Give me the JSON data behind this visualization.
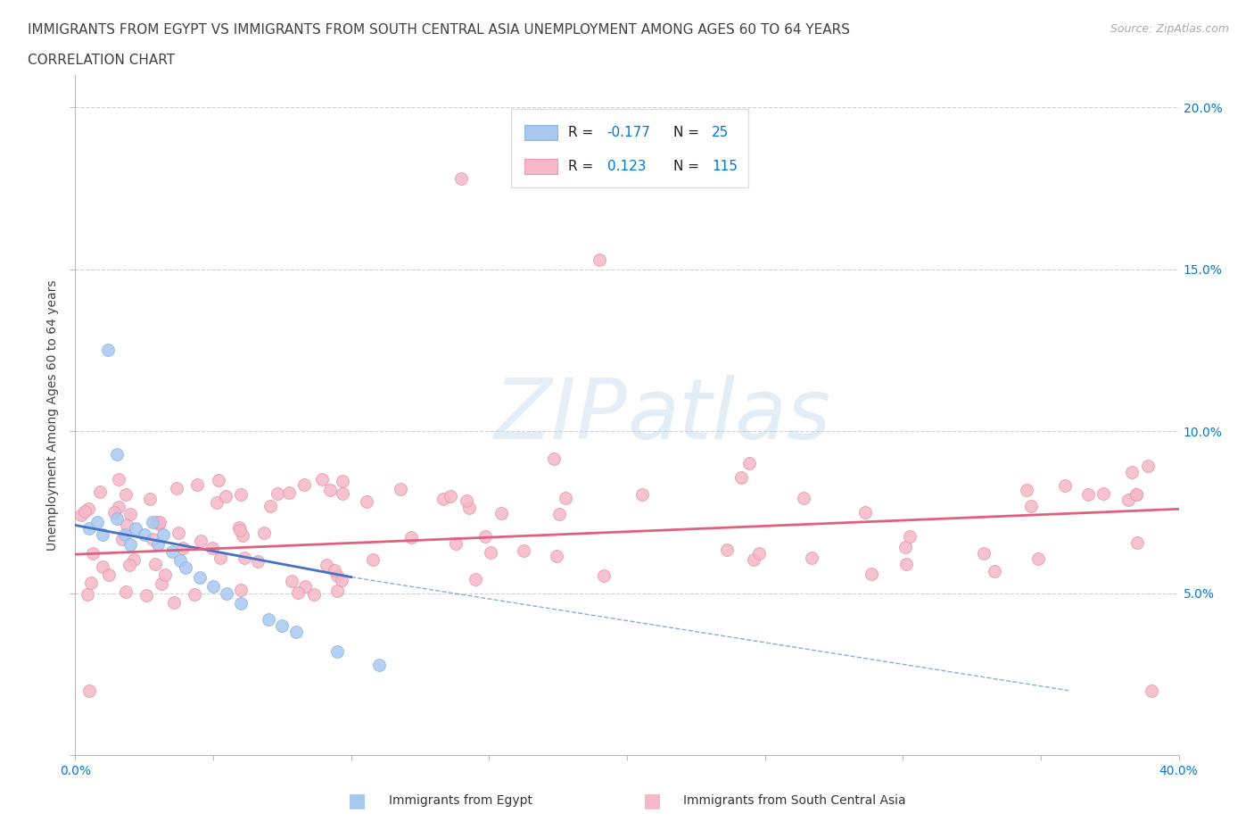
{
  "title_line1": "IMMIGRANTS FROM EGYPT VS IMMIGRANTS FROM SOUTH CENTRAL ASIA UNEMPLOYMENT AMONG AGES 60 TO 64 YEARS",
  "title_line2": "CORRELATION CHART",
  "source_text": "Source: ZipAtlas.com",
  "ylabel": "Unemployment Among Ages 60 to 64 years",
  "xlim": [
    0.0,
    0.4
  ],
  "ylim": [
    0.0,
    0.21
  ],
  "grid_color": "#cccccc",
  "background_color": "#ffffff",
  "egypt_color": "#a8c8f0",
  "egypt_edge_color": "#90b8e0",
  "sca_color": "#f5b8c8",
  "sca_edge_color": "#e898b0",
  "egypt_R": -0.177,
  "egypt_N": 25,
  "sca_R": 0.123,
  "sca_N": 115,
  "legend_label_egypt": "Immigrants from Egypt",
  "legend_label_sca": "Immigrants from South Central Asia",
  "title_color": "#404040",
  "axis_color": "#0078d4",
  "title_fontsize": 11,
  "label_fontsize": 10,
  "watermark_color": "#ccddf0",
  "egypt_trend_color": "#4472c4",
  "sca_trend_color": "#e06080"
}
